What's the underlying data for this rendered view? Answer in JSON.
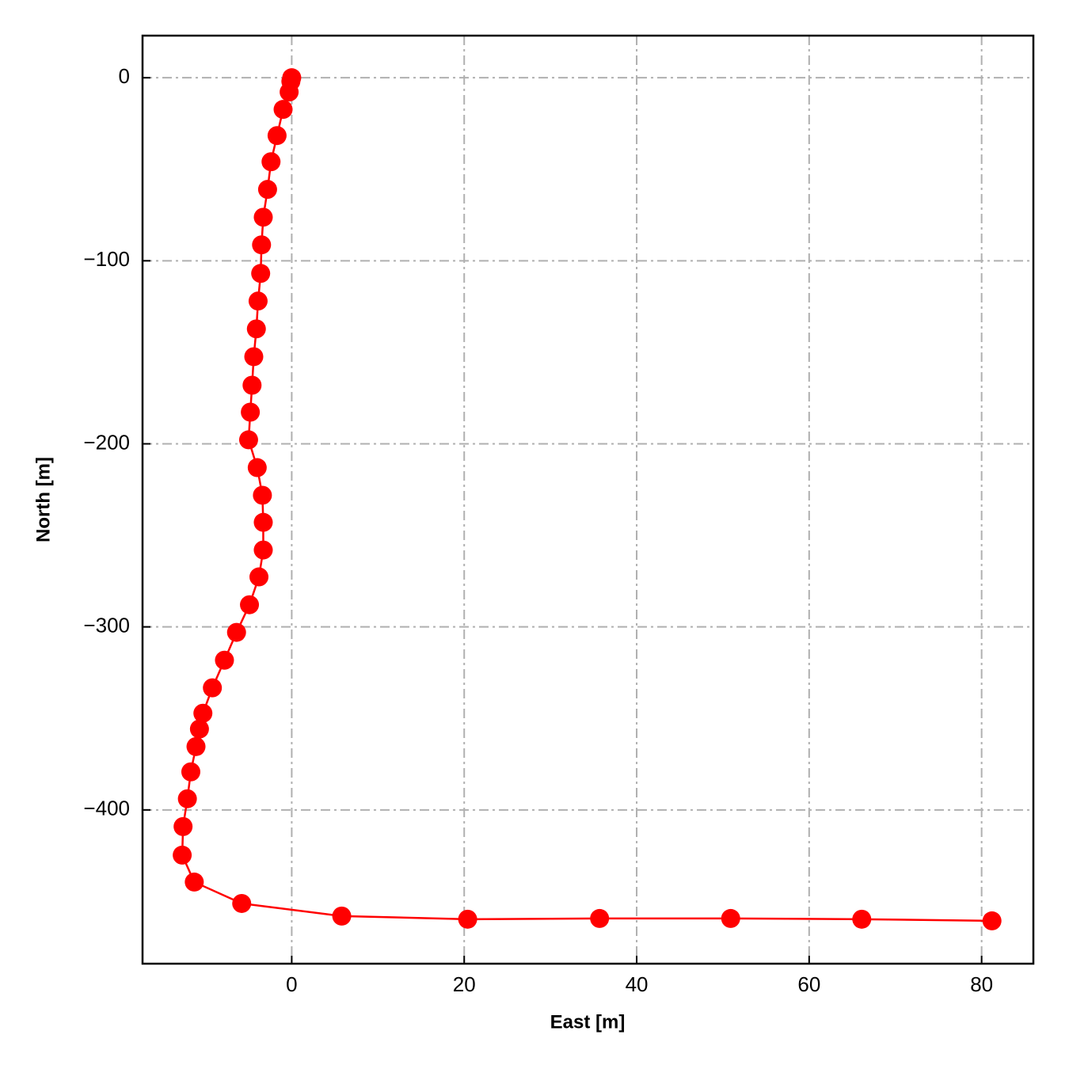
{
  "chart_data": {
    "type": "line",
    "xlabel": "East [m]",
    "ylabel": "North [m]",
    "x": [
      0,
      -0.1,
      -0.3,
      -1.0,
      -1.7,
      -2.4,
      -2.8,
      -3.3,
      -3.5,
      -3.6,
      -3.9,
      -4.1,
      -4.4,
      -4.6,
      -4.8,
      -5.0,
      -4.0,
      -3.4,
      -3.3,
      -3.3,
      -3.8,
      -4.9,
      -6.4,
      -7.8,
      -9.2,
      -10.3,
      -10.7,
      -11.1,
      -11.7,
      -12.1,
      -12.6,
      -12.7,
      -11.3,
      -5.8,
      5.8,
      20.4,
      35.7,
      50.9,
      66.1,
      81.2
    ],
    "series": [
      {
        "color": "#ff0000",
        "values": [
          0,
          -2,
          -7.8,
          -17.3,
          -31.6,
          -45.9,
          -61,
          -76.2,
          -91.3,
          -106.9,
          -122,
          -137.2,
          -152.4,
          -168,
          -182.7,
          -197.8,
          -213,
          -228.1,
          -242.9,
          -258,
          -272.7,
          -287.9,
          -303,
          -318.2,
          -333.3,
          -347.2,
          -355.8,
          -365.4,
          -379.2,
          -393.9,
          -409.1,
          -424.7,
          -439.4,
          -451.1,
          -458,
          -459.7,
          -459.3,
          -459.3,
          -459.7,
          -460.6
        ]
      }
    ],
    "xlim": [
      -17.3,
      86
    ],
    "ylim": [
      -484,
      23
    ],
    "xticks": [
      0,
      20,
      40,
      60,
      80
    ],
    "yticks": [
      0,
      {
        "value": -100,
        "label": "−100"
      },
      {
        "value": -200,
        "label": "−200"
      },
      {
        "value": -300,
        "label": "−300"
      },
      {
        "value": -400,
        "label": "−400"
      }
    ],
    "grid": true
  }
}
